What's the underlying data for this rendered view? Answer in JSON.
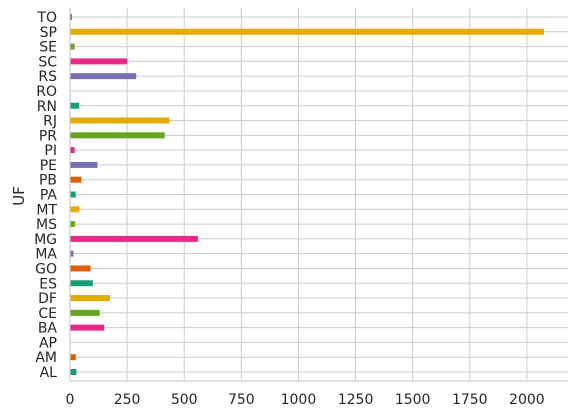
{
  "chart_data": {
    "type": "bar",
    "orientation": "horizontal",
    "title": "",
    "xlabel": "",
    "ylabel": "UF",
    "xlim": [
      0,
      2180
    ],
    "xticks": [
      0,
      250,
      500,
      750,
      1000,
      1250,
      1500,
      1750,
      2000
    ],
    "grid": true,
    "legend": "none",
    "categories": [
      "TO",
      "SP",
      "SE",
      "SC",
      "RS",
      "RO",
      "RN",
      "RJ",
      "PR",
      "PI",
      "PE",
      "PB",
      "PA",
      "MT",
      "MS",
      "MG",
      "MA",
      "GO",
      "ES",
      "DF",
      "CE",
      "BA",
      "AP",
      "AM",
      "AL"
    ],
    "values": [
      8,
      2075,
      20,
      250,
      290,
      2,
      40,
      435,
      415,
      20,
      120,
      50,
      25,
      40,
      22,
      560,
      15,
      90,
      100,
      175,
      130,
      150,
      2,
      25,
      28
    ],
    "colors": [
      "#666666",
      "#e6ab02",
      "#66a61e",
      "#e7298a",
      "#7570b3",
      "#d95f02",
      "#1b9e77",
      "#e6ab02",
      "#66a61e",
      "#e7298a",
      "#7570b3",
      "#d95f02",
      "#1b9e77",
      "#e6ab02",
      "#66a61e",
      "#e7298a",
      "#7570b3",
      "#d95f02",
      "#1b9e77",
      "#e6ab02",
      "#66a61e",
      "#e7298a",
      "#7570b3",
      "#d95f02",
      "#1b9e77"
    ]
  }
}
